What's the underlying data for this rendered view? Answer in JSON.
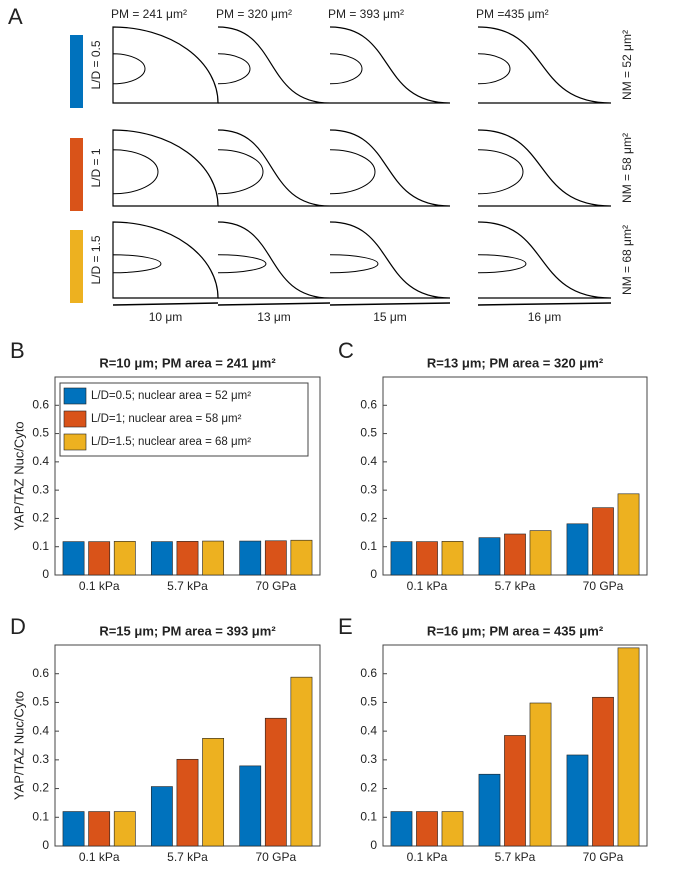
{
  "panel_a": {
    "label": "A",
    "columns": [
      {
        "pm": "PM = 241 μm²",
        "scale": "10 μm"
      },
      {
        "pm": "PM = 320 μm²",
        "scale": "13 μm"
      },
      {
        "pm": "PM = 393 μm²",
        "scale": "15 μm"
      },
      {
        "pm": "PM =435 μm²",
        "scale": "16 μm"
      }
    ],
    "rows": [
      {
        "label": "L/D = 0.5",
        "nm": "NM = 52 μm²",
        "color": "#0072BD"
      },
      {
        "label": "L/D = 1",
        "nm": "NM = 58 μm²",
        "color": "#D95319"
      },
      {
        "label": "L/D = 1.5",
        "nm": "NM = 68 μm²",
        "color": "#EDB120"
      }
    ]
  },
  "chart_data": [
    {
      "type": "bar",
      "panel_label": "B",
      "title": "R=10 μm; PM area = 241 μm²",
      "ylabel": "YAP/TAZ Nuc/Cyto",
      "categories": [
        "0.1 kPa",
        "5.7 kPa",
        "70 GPa"
      ],
      "series": [
        {
          "name": "L/D=0.5; nuclear area = 52 μm²",
          "color": "#0072BD",
          "values": [
            0.118,
            0.118,
            0.12
          ]
        },
        {
          "name": "L/D=1; nuclear area = 58 μm²",
          "color": "#D95319",
          "values": [
            0.118,
            0.119,
            0.121
          ]
        },
        {
          "name": "L/D=1.5; nuclear area = 68 μm²",
          "color": "#EDB120",
          "values": [
            0.119,
            0.12,
            0.123
          ]
        }
      ],
      "ylim": [
        0,
        0.7
      ],
      "yticks": [
        0,
        0.1,
        0.2,
        0.3,
        0.4,
        0.5,
        0.6
      ],
      "legend": "upper left"
    },
    {
      "type": "bar",
      "panel_label": "C",
      "title": "R=13 μm; PM area = 320 μm²",
      "categories": [
        "0.1 kPa",
        "5.7 kPa",
        "70 GPa"
      ],
      "series": [
        {
          "color": "#0072BD",
          "values": [
            0.118,
            0.132,
            0.181
          ]
        },
        {
          "color": "#D95319",
          "values": [
            0.118,
            0.145,
            0.238
          ]
        },
        {
          "color": "#EDB120",
          "values": [
            0.119,
            0.157,
            0.287
          ]
        }
      ],
      "ylim": [
        0,
        0.7
      ],
      "yticks": [
        0,
        0.1,
        0.2,
        0.3,
        0.4,
        0.5,
        0.6
      ]
    },
    {
      "type": "bar",
      "panel_label": "D",
      "title": "R=15 μm; PM area = 393 μm²",
      "ylabel": "YAP/TAZ Nuc/Cyto",
      "categories": [
        "0.1 kPa",
        "5.7 kPa",
        "70 GPa"
      ],
      "series": [
        {
          "color": "#0072BD",
          "values": [
            0.12,
            0.207,
            0.279
          ]
        },
        {
          "color": "#D95319",
          "values": [
            0.12,
            0.302,
            0.445
          ]
        },
        {
          "color": "#EDB120",
          "values": [
            0.12,
            0.375,
            0.588
          ]
        }
      ],
      "ylim": [
        0,
        0.7
      ],
      "yticks": [
        0,
        0.1,
        0.2,
        0.3,
        0.4,
        0.5,
        0.6
      ]
    },
    {
      "type": "bar",
      "panel_label": "E",
      "title": "R=16 μm; PM area = 435 μm²",
      "categories": [
        "0.1 kPa",
        "5.7 kPa",
        "70 GPa"
      ],
      "series": [
        {
          "color": "#0072BD",
          "values": [
            0.12,
            0.25,
            0.317
          ]
        },
        {
          "color": "#D95319",
          "values": [
            0.12,
            0.385,
            0.518
          ]
        },
        {
          "color": "#EDB120",
          "values": [
            0.12,
            0.498,
            0.69
          ]
        }
      ],
      "ylim": [
        0,
        0.7
      ],
      "yticks": [
        0,
        0.1,
        0.2,
        0.3,
        0.4,
        0.5,
        0.6
      ]
    }
  ]
}
